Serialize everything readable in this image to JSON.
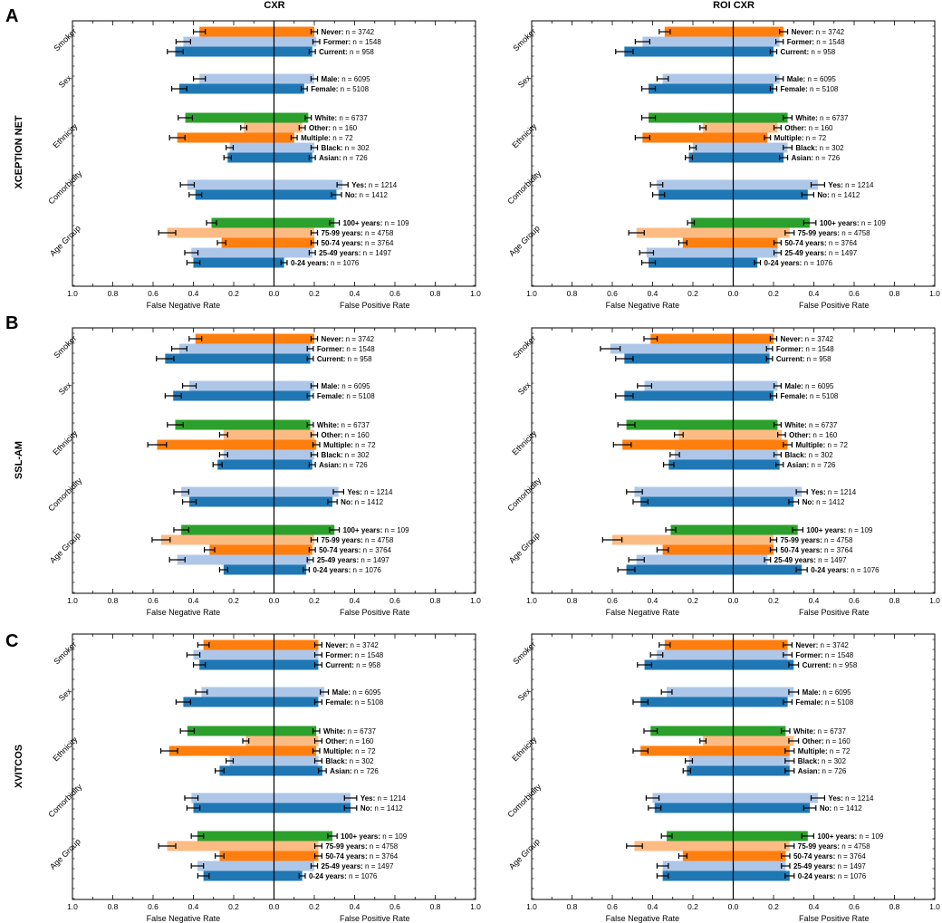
{
  "figure": {
    "column_titles": [
      "CXR",
      "ROI CXR"
    ],
    "row_titles": [
      "XCEPTION NET",
      "SSL-AM",
      "XVITCOS"
    ],
    "panel_letters": [
      "A",
      "B",
      "C"
    ]
  },
  "colors": {
    "orange": "#ff7f0e",
    "light_orange": "#fdbb84",
    "blue": "#1f77b4",
    "light_blue": "#aec7e8",
    "green": "#2ca02c"
  },
  "chart_data": {
    "type": "bar",
    "orientation": "horizontal-diverging",
    "xlabel_left": "False Negative Rate",
    "xlabel_right": "False Positive Rate",
    "ticks": [
      "1.0",
      "0.8",
      "0.6",
      "0.4",
      "0.2",
      "0.0",
      "0.2",
      "0.4",
      "0.6",
      "0.8",
      "1.0"
    ],
    "xlim": [
      -1,
      1
    ],
    "group_labels": [
      "Smoker",
      "Sex",
      "Ethnicity",
      "Comorbidity",
      "Age Group"
    ],
    "groups": [
      {
        "name": "Smoker",
        "bars": [
          {
            "label": "Never:",
            "n": "n = 3742",
            "color": "orange"
          },
          {
            "label": "Former:",
            "n": "n = 1548",
            "color": "light_blue"
          },
          {
            "label": "Current:",
            "n": "n = 958",
            "color": "blue"
          }
        ]
      },
      {
        "name": "Sex",
        "bars": [
          {
            "label": "Male:",
            "n": "n = 6095",
            "color": "light_blue"
          },
          {
            "label": "Female:",
            "n": "n = 5108",
            "color": "blue"
          }
        ]
      },
      {
        "name": "Ethnicity",
        "bars": [
          {
            "label": "White:",
            "n": "n = 6737",
            "color": "green"
          },
          {
            "label": "Other:",
            "n": "n = 160",
            "color": "light_orange"
          },
          {
            "label": "Multiple:",
            "n": "n = 72",
            "color": "orange"
          },
          {
            "label": "Black:",
            "n": "n = 302",
            "color": "light_blue"
          },
          {
            "label": "Asian:",
            "n": "n = 726",
            "color": "blue"
          }
        ]
      },
      {
        "name": "Comorbidity",
        "bars": [
          {
            "label": "Yes:",
            "n": "n = 1214",
            "color": "light_blue"
          },
          {
            "label": "No:",
            "n": "n = 1412",
            "color": "blue"
          }
        ]
      },
      {
        "name": "Age Group",
        "bars": [
          {
            "label": "100+ years:",
            "n": "n = 109",
            "color": "green"
          },
          {
            "label": "75-99 years:",
            "n": "n = 4758",
            "color": "light_orange"
          },
          {
            "label": "50-74 years:",
            "n": "n = 3764",
            "color": "orange"
          },
          {
            "label": "25-49 years:",
            "n": "n = 1497",
            "color": "light_blue"
          },
          {
            "label": "0-24 years:",
            "n": "n = 1076",
            "color": "blue"
          }
        ]
      }
    ],
    "panels": [
      {
        "row": "XCEPTION NET",
        "col": "CXR",
        "fnr": [
          0.37,
          0.45,
          0.49,
          0.37,
          0.47,
          0.44,
          0.15,
          0.48,
          0.22,
          0.23,
          0.43,
          0.39,
          0.31,
          0.53,
          0.26,
          0.41,
          0.4
        ],
        "fpr": [
          0.2,
          0.21,
          0.19,
          0.2,
          0.15,
          0.17,
          0.14,
          0.1,
          0.2,
          0.19,
          0.34,
          0.31,
          0.3,
          0.2,
          0.2,
          0.19,
          0.05
        ]
      },
      {
        "row": "XCEPTION NET",
        "col": "ROI CXR",
        "fnr": [
          0.34,
          0.45,
          0.54,
          0.35,
          0.42,
          0.42,
          0.15,
          0.45,
          0.2,
          0.22,
          0.38,
          0.37,
          0.21,
          0.48,
          0.25,
          0.43,
          0.42
        ],
        "fpr": [
          0.25,
          0.23,
          0.2,
          0.23,
          0.2,
          0.27,
          0.22,
          0.17,
          0.27,
          0.25,
          0.42,
          0.37,
          0.38,
          0.28,
          0.22,
          0.22,
          0.12
        ]
      },
      {
        "row": "SSL-AM",
        "col": "CXR",
        "fnr": [
          0.39,
          0.47,
          0.54,
          0.42,
          0.5,
          0.49,
          0.25,
          0.58,
          0.25,
          0.28,
          0.46,
          0.42,
          0.46,
          0.56,
          0.32,
          0.48,
          0.25
        ],
        "fpr": [
          0.2,
          0.18,
          0.18,
          0.2,
          0.18,
          0.18,
          0.2,
          0.21,
          0.2,
          0.19,
          0.32,
          0.29,
          0.3,
          0.2,
          0.19,
          0.18,
          0.16
        ]
      },
      {
        "row": "SSL-AM",
        "col": "ROI CXR",
        "fnr": [
          0.41,
          0.61,
          0.54,
          0.44,
          0.54,
          0.53,
          0.27,
          0.55,
          0.29,
          0.32,
          0.49,
          0.46,
          0.31,
          0.6,
          0.35,
          0.48,
          0.53
        ],
        "fpr": [
          0.2,
          0.18,
          0.18,
          0.22,
          0.2,
          0.22,
          0.24,
          0.27,
          0.22,
          0.23,
          0.34,
          0.3,
          0.32,
          0.2,
          0.2,
          0.17,
          0.34
        ]
      },
      {
        "row": "XVITCOS",
        "col": "CXR",
        "fnr": [
          0.35,
          0.4,
          0.37,
          0.36,
          0.45,
          0.43,
          0.14,
          0.52,
          0.22,
          0.27,
          0.41,
          0.4,
          0.38,
          0.53,
          0.27,
          0.38,
          0.35
        ],
        "fpr": [
          0.22,
          0.22,
          0.22,
          0.25,
          0.22,
          0.21,
          0.22,
          0.21,
          0.22,
          0.24,
          0.38,
          0.38,
          0.29,
          0.22,
          0.22,
          0.2,
          0.14
        ]
      },
      {
        "row": "XVITCOS",
        "col": "ROI CXR",
        "fnr": [
          0.34,
          0.38,
          0.44,
          0.33,
          0.46,
          0.41,
          0.15,
          0.46,
          0.22,
          0.23,
          0.4,
          0.39,
          0.33,
          0.49,
          0.25,
          0.35,
          0.35
        ],
        "fpr": [
          0.27,
          0.27,
          0.3,
          0.3,
          0.27,
          0.26,
          0.3,
          0.28,
          0.28,
          0.28,
          0.42,
          0.38,
          0.37,
          0.28,
          0.26,
          0.26,
          0.28
        ]
      }
    ]
  }
}
